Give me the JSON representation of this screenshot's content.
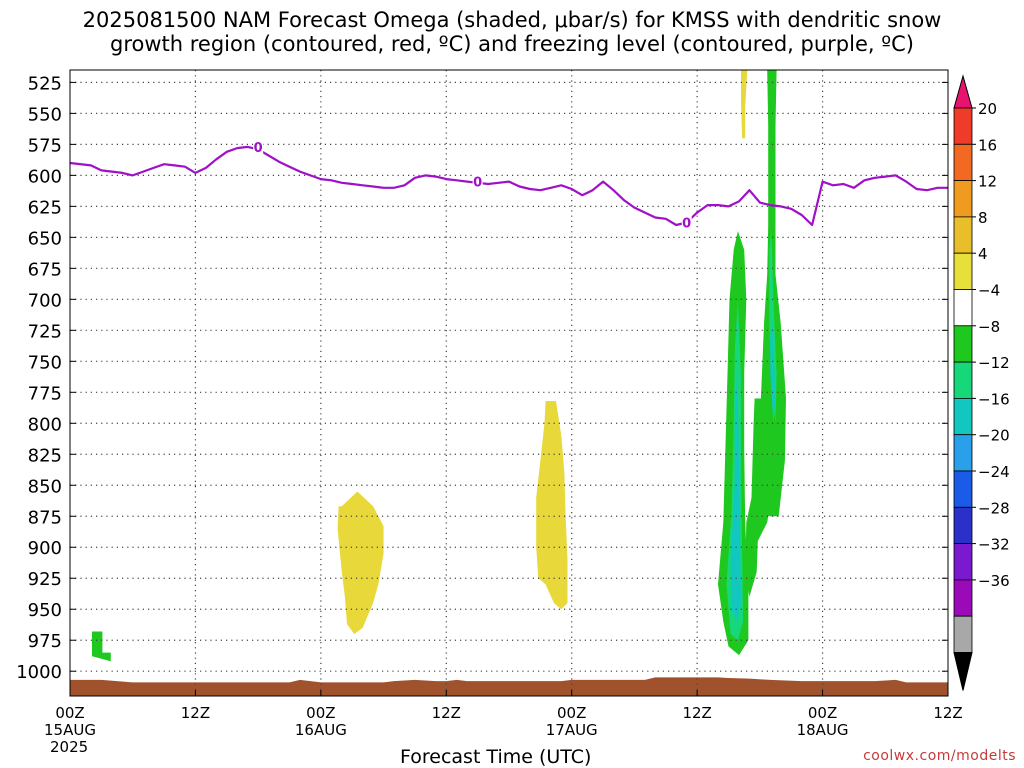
{
  "title": {
    "line1": "2025081500 NAM Forecast Omega (shaded, μbar/s) for KMSS with dendritic snow",
    "line2": "growth region (contoured, red, ºC) and freezing level (contoured, purple, ºC)"
  },
  "credit": "coolwx.com/modelts",
  "chart_data": {
    "type": "heatmap",
    "xlabel": "Forecast Time (UTC)",
    "ylabel": "",
    "x_unit": "hours since 2025-08-15 00Z",
    "xlim": [
      0,
      84
    ],
    "x_ticks": [
      {
        "hour": 0,
        "lines": [
          "00Z",
          "15AUG",
          "2025"
        ]
      },
      {
        "hour": 12,
        "lines": [
          "12Z"
        ]
      },
      {
        "hour": 24,
        "lines": [
          "00Z",
          "16AUG"
        ]
      },
      {
        "hour": 36,
        "lines": [
          "12Z"
        ]
      },
      {
        "hour": 48,
        "lines": [
          "00Z",
          "17AUG"
        ]
      },
      {
        "hour": 60,
        "lines": [
          "12Z"
        ]
      },
      {
        "hour": 72,
        "lines": [
          "00Z",
          "18AUG"
        ]
      },
      {
        "hour": 84,
        "lines": [
          "12Z"
        ]
      }
    ],
    "y_scale": "pressure (hPa), inverted",
    "ylim": [
      1020,
      515
    ],
    "y_ticks": [
      525,
      550,
      575,
      600,
      625,
      650,
      675,
      700,
      725,
      750,
      775,
      800,
      825,
      850,
      875,
      900,
      925,
      950,
      975,
      1000
    ],
    "grid": true,
    "colorbar": {
      "labels": [
        "20",
        "16",
        "12",
        "8",
        "4",
        "−4",
        "−8",
        "−12",
        "−16",
        "−20",
        "−24",
        "−28",
        "−32",
        "−36"
      ],
      "colors": [
        "#e8136f",
        "#f03a2a",
        "#f26a22",
        "#ef9b20",
        "#e8be2a",
        "#e8e03a",
        "#ffffff",
        "#1ec81e",
        "#16d77a",
        "#12c7c0",
        "#2aa0ea",
        "#1a5ce8",
        "#2a30c8",
        "#7a1ad0",
        "#9a0ab8",
        "#a8a8a8",
        "#000000"
      ]
    },
    "freezing_level": {
      "label": "0",
      "color": "#a010c8",
      "points": [
        [
          0,
          590
        ],
        [
          2,
          592
        ],
        [
          3,
          596
        ],
        [
          5,
          598
        ],
        [
          6,
          600
        ],
        [
          7,
          597
        ],
        [
          8,
          594
        ],
        [
          9,
          591
        ],
        [
          10,
          592
        ],
        [
          11,
          593
        ],
        [
          12,
          598
        ],
        [
          13,
          594
        ],
        [
          14,
          587
        ],
        [
          15,
          581
        ],
        [
          16,
          578
        ],
        [
          17,
          577
        ],
        [
          18,
          579
        ],
        [
          19,
          584
        ],
        [
          20,
          589
        ],
        [
          21,
          593
        ],
        [
          22,
          597
        ],
        [
          23,
          600
        ],
        [
          24,
          603
        ],
        [
          25,
          604
        ],
        [
          26,
          606
        ],
        [
          27,
          607
        ],
        [
          28,
          608
        ],
        [
          29,
          609
        ],
        [
          30,
          610
        ],
        [
          31,
          610
        ],
        [
          32,
          608
        ],
        [
          33,
          602
        ],
        [
          34,
          600
        ],
        [
          35,
          601
        ],
        [
          36,
          603
        ],
        [
          37,
          604
        ],
        [
          38,
          605
        ],
        [
          39,
          606
        ],
        [
          40,
          607
        ],
        [
          41,
          606
        ],
        [
          42,
          605
        ],
        [
          43,
          609
        ],
        [
          44,
          611
        ],
        [
          45,
          612
        ],
        [
          46,
          610
        ],
        [
          47,
          608
        ],
        [
          48,
          611
        ],
        [
          49,
          616
        ],
        [
          50,
          612
        ],
        [
          51,
          605
        ],
        [
          52,
          612
        ],
        [
          53,
          620
        ],
        [
          54,
          626
        ],
        [
          55,
          630
        ],
        [
          56,
          634
        ],
        [
          57,
          635
        ],
        [
          58,
          640
        ],
        [
          59,
          638
        ],
        [
          60,
          630
        ],
        [
          61,
          624
        ],
        [
          62,
          624
        ],
        [
          63,
          625
        ],
        [
          64,
          621
        ],
        [
          65,
          612
        ],
        [
          66,
          622
        ],
        [
          67,
          624
        ],
        [
          68,
          625
        ],
        [
          69,
          627
        ],
        [
          70,
          632
        ],
        [
          71,
          640
        ],
        [
          72,
          605
        ],
        [
          73,
          608
        ],
        [
          74,
          607
        ],
        [
          75,
          610
        ],
        [
          76,
          604
        ],
        [
          77,
          602
        ],
        [
          78,
          601
        ],
        [
          79,
          600
        ],
        [
          80,
          605
        ],
        [
          81,
          611
        ],
        [
          82,
          612
        ],
        [
          83,
          610
        ],
        [
          84,
          610
        ]
      ],
      "label_positions": [
        [
          18,
          577
        ],
        [
          39,
          605
        ],
        [
          59,
          638
        ]
      ]
    },
    "omega_areas": [
      {
        "value_class": "4 to 8",
        "color": "#e8d83a",
        "points": [
          [
            26.0,
            867
          ],
          [
            27.5,
            855
          ],
          [
            29.0,
            867
          ],
          [
            30.0,
            883
          ],
          [
            30.0,
            905
          ],
          [
            29.5,
            930
          ],
          [
            29.0,
            945
          ],
          [
            28.0,
            965
          ],
          [
            27.2,
            970
          ],
          [
            26.5,
            962
          ],
          [
            26.3,
            940
          ],
          [
            26.0,
            920
          ],
          [
            25.6,
            885
          ],
          [
            25.7,
            867
          ]
        ]
      },
      {
        "value_class": "4 to 8",
        "color": "#e8d83a",
        "points": [
          [
            45.5,
            782
          ],
          [
            46.5,
            782
          ],
          [
            47.0,
            810
          ],
          [
            47.3,
            840
          ],
          [
            47.4,
            870
          ],
          [
            47.6,
            910
          ],
          [
            47.6,
            945
          ],
          [
            47.0,
            950
          ],
          [
            46.3,
            945
          ],
          [
            45.5,
            930
          ],
          [
            44.8,
            925
          ],
          [
            44.6,
            900
          ],
          [
            44.6,
            860
          ],
          [
            45.0,
            830
          ],
          [
            45.4,
            800
          ]
        ]
      },
      {
        "value_class": "4 to 8",
        "color": "#e8d83a",
        "points": [
          [
            64.2,
            515
          ],
          [
            64.8,
            515
          ],
          [
            64.6,
            545
          ],
          [
            64.6,
            570
          ],
          [
            64.3,
            570
          ],
          [
            64.2,
            540
          ]
        ]
      },
      {
        "value_class": "4 to 8",
        "color": "#e8d83a",
        "points": [
          [
            65.8,
            805
          ],
          [
            66.1,
            805
          ],
          [
            66.1,
            840
          ],
          [
            65.8,
            840
          ]
        ]
      },
      {
        "value_class": "-4 to -8",
        "color": "#1ec81e",
        "points": [
          [
            63.9,
            645
          ],
          [
            64.5,
            660
          ],
          [
            64.7,
            700
          ],
          [
            64.5,
            760
          ],
          [
            64.5,
            820
          ],
          [
            64.6,
            880
          ],
          [
            64.9,
            940
          ],
          [
            64.9,
            975
          ],
          [
            64.0,
            987
          ],
          [
            63.0,
            980
          ],
          [
            62.5,
            960
          ],
          [
            62.0,
            930
          ],
          [
            62.5,
            880
          ],
          [
            62.7,
            820
          ],
          [
            62.9,
            760
          ],
          [
            63.1,
            700
          ],
          [
            63.5,
            660
          ]
        ]
      },
      {
        "value_class": "-4 to -8",
        "color": "#1ec81e",
        "points": [
          [
            66.7,
            515
          ],
          [
            67.6,
            515
          ],
          [
            67.5,
            560
          ],
          [
            67.5,
            640
          ],
          [
            67.5,
            680
          ],
          [
            68.0,
            720
          ],
          [
            68.5,
            780
          ],
          [
            68.4,
            830
          ],
          [
            67.8,
            875
          ],
          [
            66.8,
            875
          ],
          [
            66.7,
            880
          ],
          [
            65.8,
            895
          ],
          [
            65.7,
            920
          ],
          [
            65.0,
            940
          ],
          [
            64.6,
            925
          ],
          [
            64.7,
            880
          ],
          [
            65.2,
            860
          ],
          [
            65.4,
            800
          ],
          [
            65.5,
            780
          ],
          [
            66.1,
            780
          ],
          [
            66.4,
            720
          ],
          [
            66.7,
            680
          ],
          [
            66.8,
            640
          ],
          [
            66.8,
            560
          ]
        ]
      },
      {
        "value_class": "-4 to -8",
        "color": "#1ec81e",
        "points": [
          [
            2.1,
            968
          ],
          [
            3.1,
            968
          ],
          [
            3.1,
            985
          ],
          [
            3.9,
            985
          ],
          [
            3.9,
            992
          ],
          [
            2.1,
            988
          ]
        ]
      },
      {
        "value_class": "-8 to -12",
        "color": "#16d77a",
        "points": [
          [
            63.9,
            700
          ],
          [
            64.2,
            760
          ],
          [
            64.2,
            830
          ],
          [
            64.3,
            900
          ],
          [
            64.4,
            960
          ],
          [
            63.9,
            975
          ],
          [
            63.2,
            970
          ],
          [
            62.8,
            930
          ],
          [
            63.3,
            870
          ],
          [
            63.5,
            800
          ],
          [
            63.6,
            740
          ]
        ]
      },
      {
        "value_class": "-8 to -12",
        "color": "#16d77a",
        "points": [
          [
            67.1,
            645
          ],
          [
            67.3,
            700
          ],
          [
            67.6,
            760
          ],
          [
            67.5,
            800
          ],
          [
            67.1,
            770
          ],
          [
            66.9,
            720
          ],
          [
            66.9,
            660
          ]
        ]
      },
      {
        "value_class": "-12 to -16",
        "color": "#12c7c0",
        "points": [
          [
            63.8,
            760
          ],
          [
            64.0,
            830
          ],
          [
            64.1,
            890
          ],
          [
            64.2,
            945
          ],
          [
            63.8,
            960
          ],
          [
            63.3,
            950
          ],
          [
            63.2,
            910
          ],
          [
            63.6,
            850
          ],
          [
            63.6,
            800
          ]
        ]
      },
      {
        "value_class": "-12 to -16",
        "color": "#12c7c0",
        "points": [
          [
            67.2,
            720
          ],
          [
            67.5,
            780
          ],
          [
            67.3,
            800
          ],
          [
            67.0,
            760
          ],
          [
            67.0,
            730
          ]
        ]
      }
    ],
    "surface": {
      "color": "#a0522d",
      "points": [
        [
          0,
          1007
        ],
        [
          3,
          1007
        ],
        [
          6,
          1009
        ],
        [
          12,
          1009
        ],
        [
          21,
          1009
        ],
        [
          22,
          1007
        ],
        [
          23,
          1008
        ],
        [
          24,
          1009
        ],
        [
          30,
          1009
        ],
        [
          31,
          1008
        ],
        [
          33,
          1007
        ],
        [
          35,
          1008
        ],
        [
          36,
          1008
        ],
        [
          37,
          1007
        ],
        [
          38,
          1008
        ],
        [
          41,
          1008
        ],
        [
          43,
          1008
        ],
        [
          47,
          1008
        ],
        [
          48,
          1007
        ],
        [
          55,
          1007
        ],
        [
          56,
          1005
        ],
        [
          62,
          1005
        ],
        [
          63,
          1005.5
        ],
        [
          65,
          1006
        ],
        [
          67,
          1007
        ],
        [
          70,
          1008
        ],
        [
          75,
          1008
        ],
        [
          77,
          1008
        ],
        [
          79,
          1007
        ],
        [
          80,
          1009
        ],
        [
          84,
          1009
        ]
      ]
    }
  }
}
